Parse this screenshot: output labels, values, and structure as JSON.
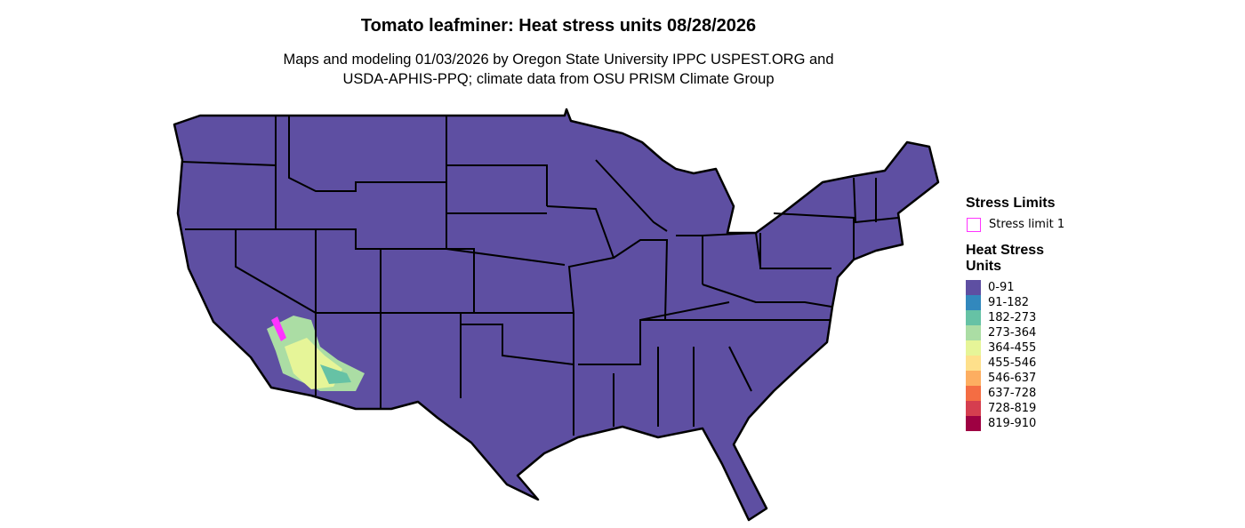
{
  "title": "Tomato leafminer: Heat stress units 08/28/2026",
  "subtitle_line1": "Maps and modeling 01/03/2026 by Oregon State University IPPC USPEST.ORG and",
  "subtitle_line2": "USDA-APHIS-PPQ; climate data from OSU PRISM Climate Group",
  "legend": {
    "limits_title": "Stress Limits",
    "limit_item": {
      "label": "Stress limit 1",
      "color": "#ff33ff"
    },
    "units_title": "Heat Stress Units",
    "classes": [
      {
        "label": "0-91",
        "color": "#5e4fa2"
      },
      {
        "label": "91-182",
        "color": "#3288bd"
      },
      {
        "label": "182-273",
        "color": "#66c2a5"
      },
      {
        "label": "273-364",
        "color": "#abdda4"
      },
      {
        "label": "364-455",
        "color": "#e6f598"
      },
      {
        "label": "455-546",
        "color": "#fee08b"
      },
      {
        "label": "546-637",
        "color": "#fdae61"
      },
      {
        "label": "637-728",
        "color": "#f46d43"
      },
      {
        "label": "728-819",
        "color": "#d53e4f"
      },
      {
        "label": "819-910",
        "color": "#9e0142"
      }
    ]
  }
}
